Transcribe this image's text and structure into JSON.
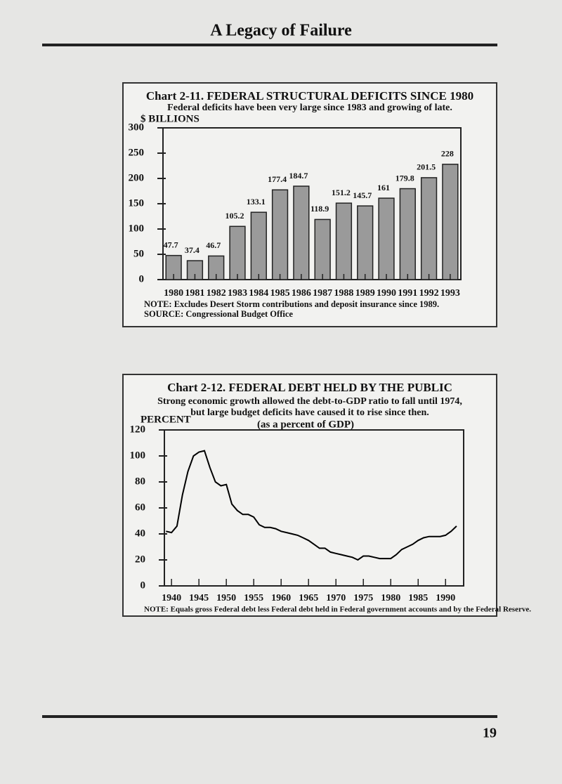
{
  "header": {
    "title": "A Legacy of Failure"
  },
  "chart_data": [
    {
      "type": "bar",
      "title": "Chart 2-11. FEDERAL STRUCTURAL DEFICITS SINCE 1980",
      "subtitle": "Federal deficits have been very large since 1983 and growing of late.",
      "y_label": "$ BILLIONS",
      "categories": [
        "1980",
        "1981",
        "1982",
        "1983",
        "1984",
        "1985",
        "1986",
        "1987",
        "1988",
        "1989",
        "1990",
        "1991",
        "1992",
        "1993"
      ],
      "values": [
        47.7,
        37.4,
        46.7,
        105.2,
        133.1,
        177.4,
        184.7,
        118.9,
        151.2,
        145.7,
        161,
        179.8,
        201.5,
        228
      ],
      "color": "#9a9a9a",
      "ylim": [
        0,
        300
      ],
      "yticks": [
        0,
        50,
        100,
        150,
        200,
        250,
        300
      ],
      "notes": [
        "NOTE: Excludes Desert Storm contributions and deposit insurance since 1989.",
        "SOURCE: Congressional Budget Office"
      ]
    },
    {
      "type": "line",
      "title": "Chart 2-12. FEDERAL DEBT HELD BY THE PUBLIC",
      "subtitle": [
        "Strong economic growth allowed the debt-to-GDP ratio to fall until 1974,",
        "but large budget deficits have caused it to rise since then."
      ],
      "y_label": "PERCENT",
      "annotation": "(as a percent of GDP)",
      "x": [
        1939,
        1940,
        1941,
        1942,
        1943,
        1944,
        1945,
        1946,
        1947,
        1948,
        1949,
        1950,
        1951,
        1952,
        1953,
        1954,
        1955,
        1956,
        1957,
        1958,
        1959,
        1960,
        1961,
        1962,
        1963,
        1964,
        1965,
        1966,
        1967,
        1968,
        1969,
        1970,
        1971,
        1972,
        1973,
        1974,
        1975,
        1976,
        1977,
        1978,
        1979,
        1980,
        1981,
        1982,
        1983,
        1984,
        1985,
        1986,
        1987,
        1988,
        1989,
        1990,
        1991,
        1992
      ],
      "values": [
        42,
        41,
        46,
        70,
        88,
        100,
        103,
        104,
        91,
        80,
        77,
        78,
        63,
        58,
        55,
        55,
        53,
        47,
        45,
        45,
        44,
        42,
        41,
        40,
        39,
        37,
        35,
        32,
        29,
        29,
        26,
        25,
        24,
        23,
        22,
        20,
        23,
        23,
        22,
        21,
        21,
        21,
        24,
        28,
        30,
        32,
        35,
        37,
        38,
        38,
        38,
        39,
        42,
        46
      ],
      "color": "#000000",
      "xlim": [
        1938.7,
        1993.3
      ],
      "xticks": [
        1940,
        1945,
        1950,
        1955,
        1960,
        1965,
        1970,
        1975,
        1980,
        1985,
        1990
      ],
      "ylim": [
        0,
        120
      ],
      "yticks": [
        0,
        20,
        40,
        60,
        80,
        100,
        120
      ],
      "notes": [
        "NOTE: Equals gross Federal debt less Federal debt held in Federal government accounts and by the Federal Reserve."
      ]
    }
  ],
  "page_number": "19"
}
